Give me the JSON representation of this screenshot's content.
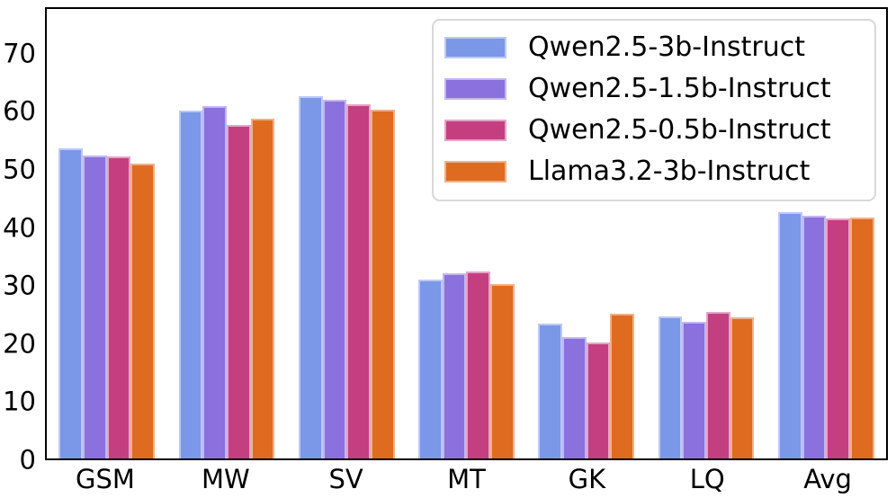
{
  "chart_data": {
    "type": "bar",
    "title": "",
    "xlabel": "",
    "ylabel": "",
    "categories": [
      "GSM",
      "MW",
      "SV",
      "MT",
      "GK",
      "LQ",
      "Avg"
    ],
    "series": [
      {
        "name": "Qwen2.5-3b-Instruct",
        "color": "#7b97e8",
        "edge_color": "#bcc9f4",
        "values": [
          53.9,
          60.4,
          62.9,
          31.0,
          23.4,
          24.6,
          42.7
        ]
      },
      {
        "name": "Qwen2.5-1.5b-Instruct",
        "color": "#8a71de",
        "edge_color": "#c3b6f0",
        "values": [
          52.6,
          61.2,
          62.3,
          32.2,
          21.0,
          23.7,
          42.2
        ]
      },
      {
        "name": "Qwen2.5-0.5b-Instruct",
        "color": "#c43f80",
        "edge_color": "#e2a6c6",
        "values": [
          52.4,
          57.9,
          61.5,
          32.5,
          20.2,
          25.5,
          41.7
        ]
      },
      {
        "name": "Llama3.2-3b-Instruct",
        "color": "#df6b20",
        "edge_color": "#f2b088",
        "values": [
          51.2,
          58.9,
          60.6,
          30.3,
          25.1,
          24.5,
          41.8
        ]
      }
    ],
    "yticks": [
      0,
      10,
      20,
      30,
      40,
      50,
      60,
      70
    ],
    "ylim": [
      0,
      78
    ],
    "grid": false,
    "legend_position": "upper right",
    "spine_color": "#000000",
    "legend_border_color": "#d8d8d8"
  }
}
